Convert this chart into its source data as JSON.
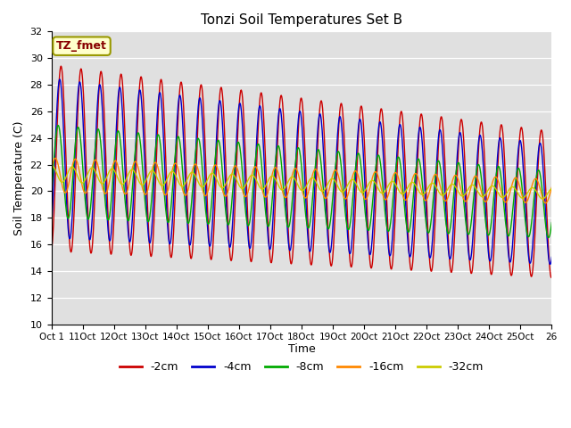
{
  "title": "Tonzi Soil Temperatures Set B",
  "xlabel": "Time",
  "ylabel": "Soil Temperature (C)",
  "annotation": "TZ_fmet",
  "ylim": [
    10,
    32
  ],
  "xlim": [
    0,
    25
  ],
  "legend_labels": [
    "-2cm",
    "-4cm",
    "-8cm",
    "-16cm",
    "-32cm"
  ],
  "colors": {
    "-2cm": "#cc0000",
    "-4cm": "#0000cc",
    "-8cm": "#00aa00",
    "-16cm": "#ff8800",
    "-32cm": "#cccc00"
  },
  "bg_color": "#e0e0e0",
  "annotation_bg": "#ffffcc",
  "annotation_border": "#999900",
  "annotation_text_color": "#880000",
  "xtick_labels": [
    "Oct 1",
    "11Oct",
    "12Oct",
    "13Oct",
    "14Oct",
    "15Oct",
    "16Oct",
    "17Oct",
    "18Oct",
    "19Oct",
    "20Oct",
    "21Oct",
    "22Oct",
    "23Oct",
    "24Oct",
    "25Oct",
    "26"
  ],
  "xtick_positions": [
    0,
    1,
    2,
    3,
    4,
    5,
    6,
    7,
    8,
    9,
    10,
    11,
    12,
    13,
    14,
    15,
    16
  ]
}
